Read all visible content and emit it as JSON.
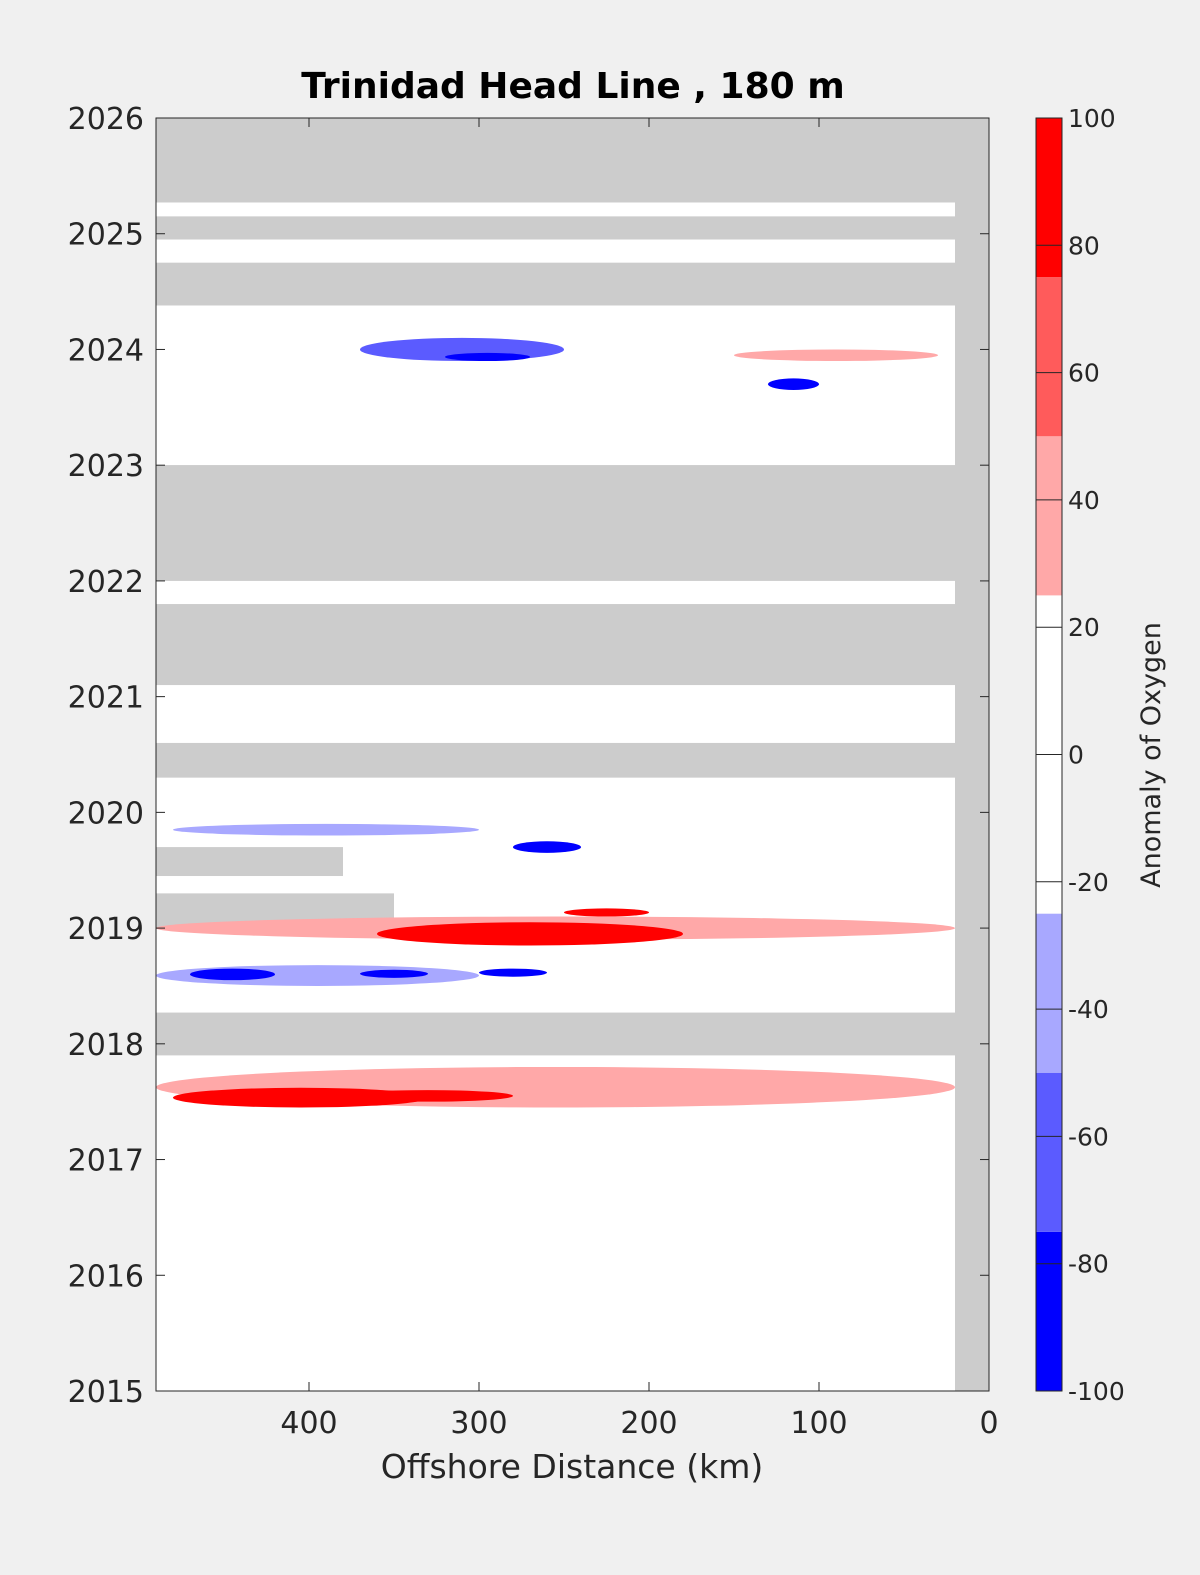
{
  "chart_data": {
    "type": "heatmap",
    "title": "Trinidad Head Line , 180 m",
    "xlabel": "Offshore Distance (km)",
    "ylabel": "",
    "xlim": [
      490,
      0
    ],
    "ylim": [
      2015,
      2026
    ],
    "x_ticks": [
      400,
      300,
      200,
      100,
      0
    ],
    "y_ticks": [
      2015,
      2016,
      2017,
      2018,
      2019,
      2020,
      2021,
      2022,
      2023,
      2024,
      2025,
      2026
    ],
    "colorbar": {
      "label": "Anomaly of Oxygen",
      "range": [
        -100,
        100
      ],
      "ticks": [
        -100,
        -80,
        -60,
        -40,
        -20,
        0,
        20,
        40,
        60,
        80,
        100
      ],
      "levels": [
        -100,
        -75,
        -50,
        -25,
        25,
        50,
        75,
        100
      ],
      "level_colors": [
        "#0000ff",
        "#5b5bff",
        "#a8a8ff",
        "#ffffff",
        "#ffa8a8",
        "#ff5b5b",
        "#ff0000"
      ]
    },
    "colors": {
      "no_data": "#cccccc",
      "neutral": "#ffffff"
    },
    "no_data_bands": [
      {
        "y": [
          2025.27,
          2026
        ],
        "x": [
          490,
          0
        ]
      },
      {
        "y": [
          2024.95,
          2025.15
        ],
        "x": [
          490,
          0
        ]
      },
      {
        "y": [
          2024.38,
          2024.75
        ],
        "x": [
          490,
          0
        ]
      },
      {
        "y": [
          2023.0,
          2022.98
        ],
        "x": [
          490,
          0
        ]
      },
      {
        "y": [
          2022.0,
          2023.0
        ],
        "x": [
          490,
          0
        ]
      },
      {
        "y": [
          2021.1,
          2021.8
        ],
        "x": [
          490,
          0
        ]
      },
      {
        "y": [
          2020.3,
          2020.6
        ],
        "x": [
          490,
          0
        ]
      },
      {
        "y": [
          2017.9,
          2018.27
        ],
        "x": [
          490,
          0
        ]
      },
      {
        "y": [
          2019.0,
          2019.3
        ],
        "x": [
          490,
          350
        ]
      },
      {
        "y": [
          2019.45,
          2019.7
        ],
        "x": [
          490,
          380
        ]
      }
    ],
    "anomalies": [
      {
        "x": [
          490,
          20
        ],
        "y": [
          2018.9,
          2019.1
        ],
        "level": 40
      },
      {
        "x": [
          360,
          180
        ],
        "y": [
          2018.85,
          2019.05
        ],
        "level": 90
      },
      {
        "x": [
          250,
          200
        ],
        "y": [
          2019.1,
          2019.17
        ],
        "level": 90
      },
      {
        "x": [
          490,
          300
        ],
        "y": [
          2018.5,
          2018.68
        ],
        "level": -40
      },
      {
        "x": [
          470,
          420
        ],
        "y": [
          2018.55,
          2018.65
        ],
        "level": -90
      },
      {
        "x": [
          370,
          330
        ],
        "y": [
          2018.57,
          2018.64
        ],
        "level": -90
      },
      {
        "x": [
          300,
          260
        ],
        "y": [
          2018.58,
          2018.65
        ],
        "level": -90
      },
      {
        "x": [
          490,
          20
        ],
        "y": [
          2017.45,
          2017.8
        ],
        "level": 40
      },
      {
        "x": [
          480,
          330
        ],
        "y": [
          2017.45,
          2017.62
        ],
        "level": 90
      },
      {
        "x": [
          380,
          280
        ],
        "y": [
          2017.5,
          2017.6
        ],
        "level": 90
      },
      {
        "x": [
          480,
          300
        ],
        "y": [
          2019.8,
          2019.9
        ],
        "level": -40
      },
      {
        "x": [
          280,
          240
        ],
        "y": [
          2019.65,
          2019.75
        ],
        "level": -90
      },
      {
        "x": [
          370,
          250
        ],
        "y": [
          2023.9,
          2024.1
        ],
        "level": -60
      },
      {
        "x": [
          320,
          270
        ],
        "y": [
          2023.9,
          2023.97
        ],
        "level": -90
      },
      {
        "x": [
          130,
          100
        ],
        "y": [
          2023.65,
          2023.75
        ],
        "level": -90
      },
      {
        "x": [
          150,
          30
        ],
        "y": [
          2023.9,
          2024.0
        ],
        "level": 40
      }
    ]
  }
}
